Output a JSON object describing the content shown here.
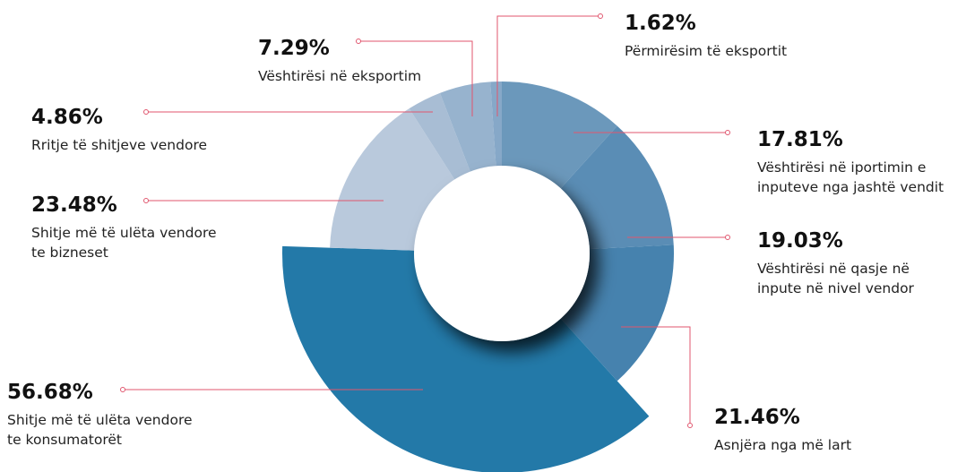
{
  "chart_data": {
    "type": "pie",
    "donut": true,
    "categories": [
      [
        "Vështirësi në iportimin e",
        "inputeve nga jashtë vendit"
      ],
      [
        "Vështirësi në qasje në",
        "inpute në nivel vendor"
      ],
      [
        "Asnjëra nga më lart"
      ],
      [
        "Shitje më të ulëta vendore",
        "te konsumatorët"
      ],
      [
        "Shitje më të ulëta vendore",
        "te bizneset"
      ],
      [
        "Rritje të shitjeve vendore"
      ],
      [
        "Vështirësi në eksportim"
      ],
      [
        "Përmirësim të eksportit"
      ]
    ],
    "values": [
      17.81,
      19.03,
      21.46,
      56.68,
      23.48,
      4.86,
      7.29,
      1.62
    ],
    "value_labels": [
      "17.81%",
      "19.03%",
      "21.46%",
      "56.68%",
      "23.48%",
      "4.86%",
      "7.29%",
      "1.62%"
    ],
    "colors": [
      "#6b98bb",
      "#5a8db5",
      "#4682ae",
      "#2379a8",
      "#b9c9dc",
      "#a8bdd4",
      "#97b3ce",
      "#86a8c8"
    ],
    "exploded": 3
  }
}
